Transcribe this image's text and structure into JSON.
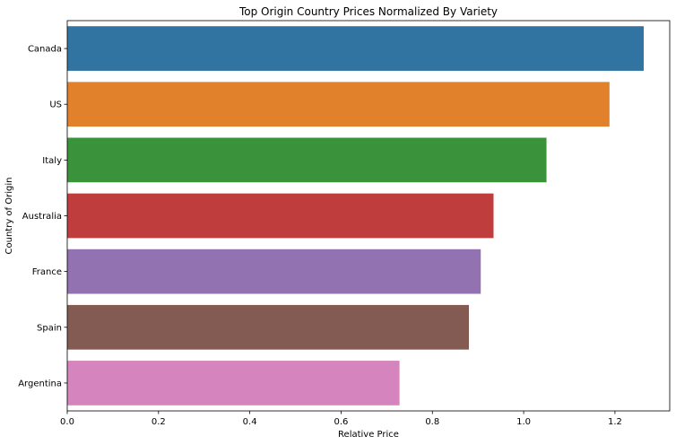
{
  "chart_data": {
    "type": "bar",
    "orientation": "horizontal",
    "title": "Top Origin Country Prices Normalized By Variety",
    "xlabel": "Relative Price",
    "ylabel": "Country of Origin",
    "categories": [
      "Canada",
      "US",
      "Italy",
      "Australia",
      "France",
      "Spain",
      "Argentina"
    ],
    "values": [
      1.263,
      1.188,
      1.05,
      0.934,
      0.906,
      0.88,
      0.728
    ],
    "colors": [
      "#3274a1",
      "#e1812c",
      "#3a923a",
      "#c03d3e",
      "#9372b2",
      "#845b53",
      "#d684bd"
    ],
    "xlim": [
      0,
      1.32
    ],
    "xticks": [
      0.0,
      0.2,
      0.4,
      0.6,
      0.8,
      1.0,
      1.2
    ],
    "xtick_labels": [
      "0.0",
      "0.2",
      "0.4",
      "0.6",
      "0.8",
      "1.0",
      "1.2"
    ],
    "grid": false,
    "legend": "none"
  }
}
